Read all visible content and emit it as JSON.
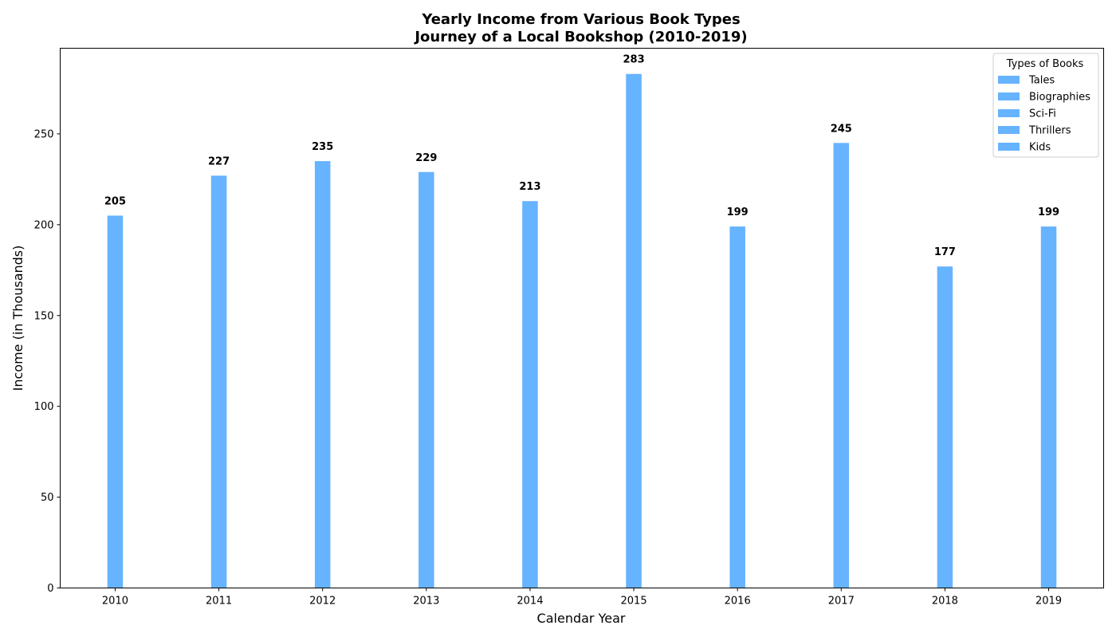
{
  "chart_data": {
    "type": "bar",
    "title": "Yearly Income from Various Book Types",
    "subtitle": "Journey of a Local Bookshop (2010-2019)",
    "xlabel": "Calendar Year",
    "ylabel": "Income (in Thousands)",
    "categories": [
      "2010",
      "2011",
      "2012",
      "2013",
      "2014",
      "2015",
      "2016",
      "2017",
      "2018",
      "2019"
    ],
    "values": [
      205,
      227,
      235,
      229,
      213,
      283,
      199,
      245,
      177,
      199
    ],
    "data_labels": [
      "205",
      "227",
      "235",
      "229",
      "213",
      "283",
      "199",
      "245",
      "177",
      "199"
    ],
    "yticks": [
      0,
      50,
      100,
      150,
      200,
      250
    ],
    "ytick_labels": [
      "0",
      "50",
      "100",
      "150",
      "200",
      "250"
    ],
    "ylim": [
      0,
      297.15
    ],
    "grid": false,
    "bar_color": "#66b3ff",
    "legend": {
      "title": "Types of Books",
      "placement": "top-right",
      "entries": [
        "Tales",
        "Biographies",
        "Sci-Fi",
        "Thrillers",
        "Kids"
      ],
      "colors": [
        "#66b3ff",
        "#66b3ff",
        "#66b3ff",
        "#66b3ff",
        "#66b3ff"
      ]
    }
  }
}
